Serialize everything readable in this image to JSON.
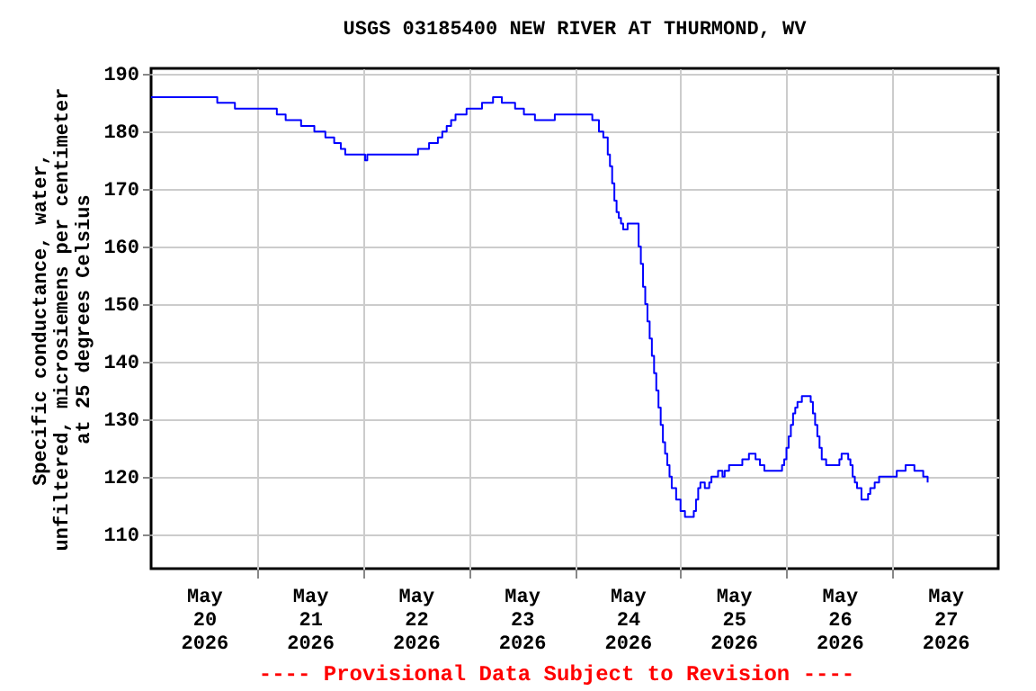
{
  "chart_data": {
    "type": "step",
    "title": "USGS 03185400 NEW RIVER AT THURMOND, WV",
    "ylabel": "Specific conductance, water,\nunfiltered, microsiemens per centimeter\nat 25 degrees Celsius",
    "annotations": [
      "---- Provisional Data Subject to Revision ----"
    ],
    "x": [
      "2026-05-20T00:00",
      "2026-05-20T15:00",
      "2026-05-20T19:00",
      "2026-05-21T04:30",
      "2026-05-21T06:30",
      "2026-05-21T10:00",
      "2026-05-21T13:00",
      "2026-05-21T15:30",
      "2026-05-21T17:30",
      "2026-05-21T19:00",
      "2026-05-21T20:00",
      "2026-05-22T00:30",
      "2026-05-22T01:00",
      "2026-05-22T12:30",
      "2026-05-22T15:00",
      "2026-05-22T17:00",
      "2026-05-22T18:00",
      "2026-05-22T19:00",
      "2026-05-22T20:00",
      "2026-05-22T21:00",
      "2026-05-22T23:30",
      "2026-05-23T03:00",
      "2026-05-23T05:30",
      "2026-05-23T07:30",
      "2026-05-23T10:30",
      "2026-05-23T12:30",
      "2026-05-23T15:00",
      "2026-05-23T19:30",
      "2026-05-24T04:00",
      "2026-05-24T05:30",
      "2026-05-24T06:30",
      "2026-05-24T07:30",
      "2026-05-24T08:00",
      "2026-05-24T08:30",
      "2026-05-24T09:00",
      "2026-05-24T09:30",
      "2026-05-24T10:00",
      "2026-05-24T10:30",
      "2026-05-24T11:00",
      "2026-05-24T12:00",
      "2026-05-24T13:00",
      "2026-05-24T14:30",
      "2026-05-24T15:00",
      "2026-05-24T15:30",
      "2026-05-24T16:00",
      "2026-05-24T16:30",
      "2026-05-24T17:00",
      "2026-05-24T17:30",
      "2026-05-24T18:00",
      "2026-05-24T18:30",
      "2026-05-24T19:00",
      "2026-05-24T19:30",
      "2026-05-24T20:00",
      "2026-05-24T20:30",
      "2026-05-24T21:00",
      "2026-05-24T21:30",
      "2026-05-24T22:00",
      "2026-05-24T23:00",
      "2026-05-25T00:00",
      "2026-05-25T01:00",
      "2026-05-25T03:00",
      "2026-05-25T03:30",
      "2026-05-25T04:00",
      "2026-05-25T04:30",
      "2026-05-25T05:30",
      "2026-05-25T06:30",
      "2026-05-25T07:00",
      "2026-05-25T08:30",
      "2026-05-25T09:30",
      "2026-05-25T10:00",
      "2026-05-25T11:00",
      "2026-05-25T14:00",
      "2026-05-25T15:30",
      "2026-05-25T17:00",
      "2026-05-25T18:00",
      "2026-05-25T19:00",
      "2026-05-25T23:00",
      "2026-05-25T23:30",
      "2026-05-26T00:00",
      "2026-05-26T00:30",
      "2026-05-26T01:00",
      "2026-05-26T01:30",
      "2026-05-26T02:00",
      "2026-05-26T02:30",
      "2026-05-26T03:30",
      "2026-05-26T05:30",
      "2026-05-26T06:00",
      "2026-05-26T06:30",
      "2026-05-26T07:00",
      "2026-05-26T07:30",
      "2026-05-26T08:00",
      "2026-05-26T09:00",
      "2026-05-26T12:00",
      "2026-05-26T12:30",
      "2026-05-26T14:00",
      "2026-05-26T14:30",
      "2026-05-26T15:00",
      "2026-05-26T15:30",
      "2026-05-26T16:00",
      "2026-05-26T17:00",
      "2026-05-26T18:30",
      "2026-05-26T19:00",
      "2026-05-26T20:00",
      "2026-05-26T21:00",
      "2026-05-27T01:00",
      "2026-05-27T03:00",
      "2026-05-27T05:00",
      "2026-05-27T07:00",
      "2026-05-27T08:00"
    ],
    "series": [
      {
        "color": "#0000ff",
        "values": [
          186,
          185,
          184,
          183,
          182,
          181,
          180,
          179,
          178,
          177,
          176,
          175,
          176,
          177,
          178,
          179,
          180,
          181,
          182,
          183,
          184,
          185,
          186,
          185,
          184,
          183,
          182,
          183,
          182,
          180,
          179,
          176,
          174,
          171,
          168,
          166,
          165,
          164,
          163,
          164,
          164,
          160,
          157,
          153,
          150,
          147,
          144,
          141,
          138,
          135,
          132,
          129,
          126,
          124,
          122,
          120,
          118,
          116,
          114,
          113,
          114,
          116,
          118,
          119,
          118,
          119,
          120,
          121,
          120,
          121,
          122,
          123,
          124,
          123,
          122,
          121,
          122,
          123,
          125,
          127,
          129,
          131,
          132,
          133,
          134,
          133,
          131,
          129,
          127,
          125,
          123,
          122,
          123,
          124,
          123,
          122,
          120,
          119,
          118,
          116,
          117,
          118,
          119,
          120,
          121,
          122,
          121,
          120,
          119
        ]
      }
    ],
    "xlim": [
      "2026-05-20T00:00",
      "2026-05-28T00:00"
    ],
    "xticks": [
      {
        "value": "2026-05-20T12:00",
        "label": "May\n20\n2026"
      },
      {
        "value": "2026-05-21T00:00",
        "label": null
      },
      {
        "value": "2026-05-21T12:00",
        "label": "May\n21\n2026"
      },
      {
        "value": "2026-05-22T00:00",
        "label": null
      },
      {
        "value": "2026-05-22T12:00",
        "label": "May\n22\n2026"
      },
      {
        "value": "2026-05-23T00:00",
        "label": null
      },
      {
        "value": "2026-05-23T12:00",
        "label": "May\n23\n2026"
      },
      {
        "value": "2026-05-24T00:00",
        "label": null
      },
      {
        "value": "2026-05-24T12:00",
        "label": "May\n24\n2026"
      },
      {
        "value": "2026-05-25T00:00",
        "label": null
      },
      {
        "value": "2026-05-25T12:00",
        "label": "May\n25\n2026"
      },
      {
        "value": "2026-05-26T00:00",
        "label": null
      },
      {
        "value": "2026-05-26T12:00",
        "label": "May\n26\n2026"
      },
      {
        "value": "2026-05-27T00:00",
        "label": null
      },
      {
        "value": "2026-05-27T12:00",
        "label": "May\n27\n2026"
      }
    ],
    "ylim": [
      104,
      191
    ],
    "yticks": [
      110,
      120,
      130,
      140,
      150,
      160,
      170,
      180,
      190
    ],
    "grid": true
  }
}
